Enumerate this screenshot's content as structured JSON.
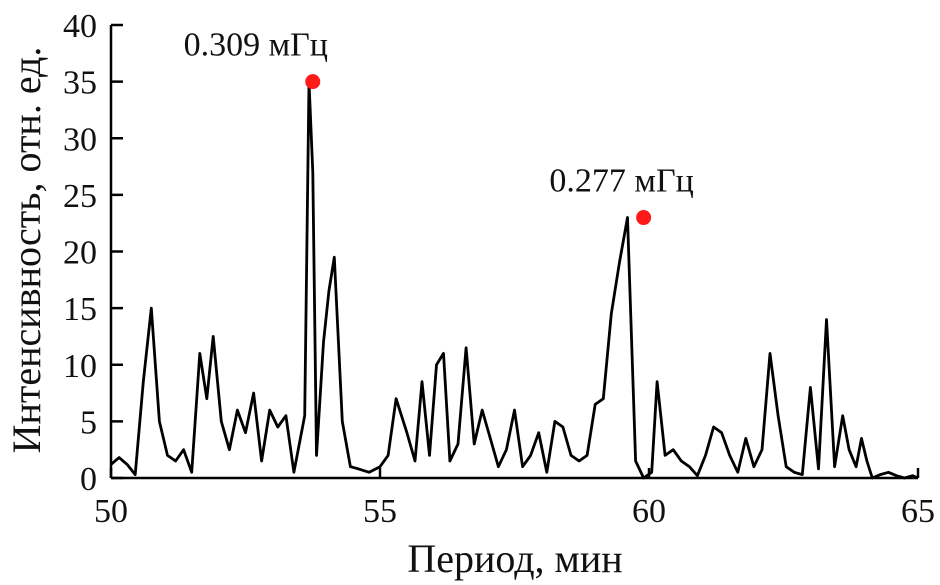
{
  "chart_data": {
    "type": "line",
    "title": "",
    "xlabel": "Период, мин",
    "ylabel": "Интенсивность, отн. ед.",
    "xlim": [
      50,
      65
    ],
    "ylim": [
      0,
      40
    ],
    "xticks": [
      50,
      55,
      60,
      65
    ],
    "yticks": [
      0,
      5,
      10,
      15,
      20,
      25,
      30,
      35,
      40
    ],
    "grid": false,
    "line_color": "#000000",
    "marker_color": "#ff1a1a",
    "series": [
      {
        "x": [
          50.0,
          50.15,
          50.3,
          50.45,
          50.6,
          50.75,
          50.9,
          51.05,
          51.2,
          51.35,
          51.5,
          51.65,
          51.78,
          51.9,
          52.05,
          52.2,
          52.35,
          52.5,
          52.65,
          52.8,
          52.95,
          53.1,
          53.25,
          53.4,
          53.6,
          53.68,
          53.75,
          53.82,
          53.95,
          54.05,
          54.15,
          54.3,
          54.45,
          54.6,
          54.8,
          55.0,
          55.15,
          55.3,
          55.5,
          55.65,
          55.78,
          55.92,
          56.05,
          56.18,
          56.3,
          56.45,
          56.6,
          56.75,
          56.9,
          57.05,
          57.2,
          57.35,
          57.5,
          57.65,
          57.8,
          57.95,
          58.1,
          58.25,
          58.4,
          58.55,
          58.7,
          58.85,
          59.0,
          59.15,
          59.3,
          59.45,
          59.6,
          59.75,
          59.9,
          60.05,
          60.15,
          60.3,
          60.45,
          60.6,
          60.75,
          60.9,
          61.05,
          61.2,
          61.35,
          61.5,
          61.65,
          61.8,
          61.95,
          62.1,
          62.25,
          62.4,
          62.55,
          62.7,
          62.85,
          63.0,
          63.15,
          63.3,
          63.45,
          63.6,
          63.72,
          63.85,
          63.95,
          64.05,
          64.15,
          64.3,
          64.45,
          64.6,
          64.75,
          64.9,
          65.0
        ],
        "y": [
          1.2,
          1.8,
          1.2,
          0.3,
          8.5,
          15.0,
          5.0,
          2.0,
          1.5,
          2.5,
          0.5,
          11.0,
          7.0,
          12.5,
          5.0,
          2.5,
          6.0,
          4.0,
          7.5,
          1.5,
          6.0,
          4.5,
          5.5,
          0.5,
          5.5,
          35.0,
          27.0,
          2.0,
          12.0,
          16.5,
          19.5,
          5.0,
          1.0,
          0.8,
          0.5,
          1.0,
          2.0,
          7.0,
          4.0,
          1.5,
          8.5,
          2.0,
          10.0,
          11.0,
          1.5,
          3.0,
          11.5,
          3.0,
          6.0,
          3.5,
          1.0,
          2.5,
          6.0,
          1.0,
          2.0,
          4.0,
          0.5,
          5.0,
          4.5,
          2.0,
          1.5,
          2.0,
          6.5,
          7.0,
          14.5,
          19.0,
          23.0,
          1.5,
          0.0,
          0.5,
          8.5,
          2.0,
          2.5,
          1.5,
          1.0,
          0.2,
          2.0,
          4.5,
          4.0,
          2.0,
          0.5,
          3.5,
          1.0,
          2.5,
          11.0,
          5.5,
          1.0,
          0.5,
          0.3,
          8.0,
          0.8,
          14.0,
          1.0,
          5.5,
          2.5,
          1.0,
          3.5,
          1.5,
          0.0,
          0.3,
          0.5,
          0.2,
          0.0,
          0.2,
          0.0
        ]
      }
    ],
    "annotations": [
      {
        "text": "0.309 мГц",
        "x": 53.75,
        "y": 35.0
      },
      {
        "text": "0.277 мГц",
        "x": 59.9,
        "y": 23.0
      }
    ]
  }
}
